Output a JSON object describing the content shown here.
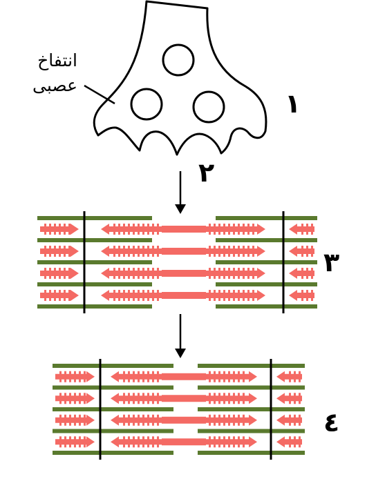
{
  "labels": {
    "synaptic_bouton_line1": "انتفاخ",
    "synaptic_bouton_line2": "عصبى",
    "n1": "١",
    "n2": "٢",
    "n3": "٣",
    "n4": "٤"
  },
  "colors": {
    "actin": "#5a7a2e",
    "myosin": "#f46a64",
    "z_line": "#000000",
    "outline": "#000000"
  },
  "sarcomeres": [
    {
      "id": "relaxed",
      "label": "٣",
      "state": "relaxed"
    },
    {
      "id": "contracted",
      "label": "٤",
      "state": "contracted"
    }
  ]
}
